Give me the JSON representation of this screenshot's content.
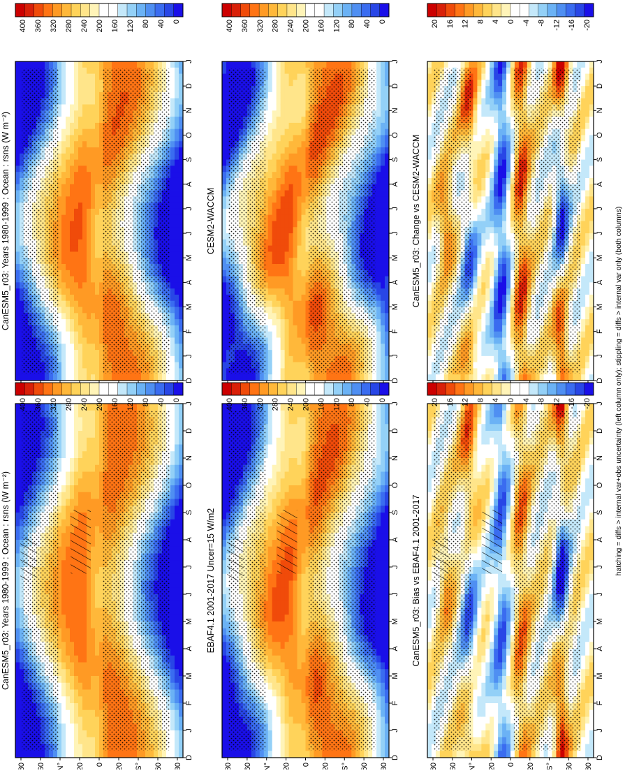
{
  "footnote": "hatching = diffs > internal var+obs uncertainty (left column only); stippling = diffs > internal var only (both columns)",
  "colors": {
    "abs_scale": [
      "#1a0fe8",
      "#2846e6",
      "#3a6cf0",
      "#4f8ff2",
      "#6bb2f5",
      "#93d0f7",
      "#c4e8fa",
      "#ffffff",
      "#ffffff",
      "#fff4b8",
      "#ffe58a",
      "#ffd35a",
      "#ffb83a",
      "#ff9a24",
      "#ff7414",
      "#f04b0a",
      "#d92008",
      "#cc0000"
    ],
    "diff_scale": [
      "#1a0fe8",
      "#2846e6",
      "#3a6cf0",
      "#4f8ff2",
      "#6bb2f5",
      "#93d0f7",
      "#c4e8fa",
      "#ffffff",
      "#ffffff",
      "#fff4b8",
      "#ffe58a",
      "#ffd35a",
      "#ffb83a",
      "#ff9a24",
      "#ff7414",
      "#f04b0a",
      "#d92008",
      "#cc0000"
    ]
  },
  "chart_data": [
    {
      "type": "heatmap",
      "title": "CanESM5_r03: Years 1980-1999 : Ocean : rsns (W m⁻²)",
      "x_ticks": [
        "D",
        "J",
        "F",
        "M",
        "A",
        "M",
        "J",
        "J",
        "A",
        "S",
        "O",
        "N",
        "D",
        "J"
      ],
      "y_ticks": [
        "80",
        "60",
        "N°",
        "20",
        "0",
        "20",
        "S°",
        "60",
        "80"
      ],
      "colorbar_ticks": [
        "400",
        "360",
        "320",
        "280",
        "240",
        "200",
        "160",
        "120",
        "80",
        "40",
        "0"
      ],
      "vmin": 0,
      "vmax": 400
    },
    {
      "type": "heatmap",
      "title": "CanESM5_r03: Years 1980-1999 : Ocean : rsns (W m⁻²)",
      "x_ticks": [
        "D",
        "J",
        "F",
        "M",
        "A",
        "M",
        "J",
        "J",
        "A",
        "S",
        "O",
        "N",
        "D",
        "J"
      ],
      "y_ticks": [
        "80",
        "60",
        "N°",
        "20",
        "0",
        "20",
        "S°",
        "60",
        "80"
      ],
      "colorbar_ticks": [
        "400",
        "360",
        "320",
        "280",
        "240",
        "200",
        "160",
        "120",
        "80",
        "40",
        "0"
      ],
      "vmin": 0,
      "vmax": 400
    },
    {
      "type": "heatmap",
      "title": "EBAF4.1 2001-2017 Uncer=15 W/m2",
      "x_ticks": [
        "D",
        "J",
        "F",
        "M",
        "A",
        "M",
        "J",
        "J",
        "A",
        "S",
        "O",
        "N",
        "D",
        "J"
      ],
      "y_ticks": [
        "80",
        "60",
        "N°",
        "20",
        "0",
        "20",
        "S°",
        "60",
        "80"
      ],
      "colorbar_ticks": [
        "400",
        "360",
        "320",
        "280",
        "240",
        "200",
        "160",
        "120",
        "80",
        "40",
        "0"
      ],
      "vmin": 0,
      "vmax": 400
    },
    {
      "type": "heatmap",
      "title": "CESM2-WACCM",
      "x_ticks": [
        "D",
        "J",
        "F",
        "M",
        "A",
        "M",
        "J",
        "J",
        "A",
        "S",
        "O",
        "N",
        "D",
        "J"
      ],
      "y_ticks": [
        "80",
        "60",
        "N°",
        "20",
        "0",
        "20",
        "S°",
        "60",
        "80"
      ],
      "colorbar_ticks": [
        "400",
        "360",
        "320",
        "280",
        "240",
        "200",
        "160",
        "120",
        "80",
        "40",
        "0"
      ],
      "vmin": 0,
      "vmax": 400
    },
    {
      "type": "heatmap",
      "title": "CanESM5_r03: Bias vs EBAF4.1 2001-2017",
      "x_ticks": [
        "D",
        "J",
        "F",
        "M",
        "A",
        "M",
        "J",
        "J",
        "A",
        "S",
        "O",
        "N",
        "D",
        "J"
      ],
      "y_ticks": [
        "80",
        "60",
        "N°",
        "20",
        "0",
        "20",
        "S°",
        "60",
        "80"
      ],
      "colorbar_ticks": [
        "20",
        "16",
        "12",
        "8",
        "4",
        "0",
        "-4",
        "-8",
        "-12",
        "-16",
        "-20"
      ],
      "vmin": -20,
      "vmax": 20
    },
    {
      "type": "heatmap",
      "title": "CanESM5_r03: Change vs CESM2-WACCM",
      "x_ticks": [
        "D",
        "J",
        "F",
        "M",
        "A",
        "M",
        "J",
        "J",
        "A",
        "S",
        "O",
        "N",
        "D",
        "J"
      ],
      "y_ticks": [
        "80",
        "60",
        "N°",
        "20",
        "0",
        "20",
        "S°",
        "60",
        "80"
      ],
      "colorbar_ticks": [
        "20",
        "16",
        "12",
        "8",
        "4",
        "0",
        "-4",
        "-8",
        "-12",
        "-16",
        "-20"
      ],
      "vmin": -20,
      "vmax": 20
    }
  ]
}
